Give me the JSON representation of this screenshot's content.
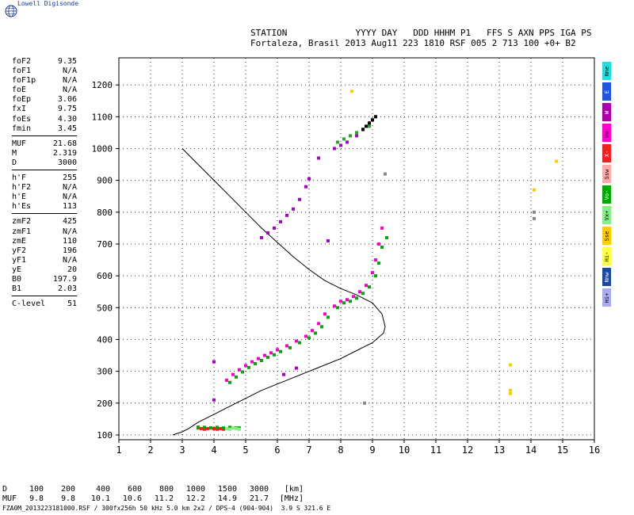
{
  "brand": "Lowell Digisonde",
  "header": {
    "line1": "STATION             YYYY DAY   DDD HHHM P1   FFS S AXN PPS IGA PS",
    "line2": "Fortaleza, Brasil 2013 Aug11 223 1810 RSF 005 2 713 100 +0+ B2"
  },
  "params": [
    {
      "name": "foF2",
      "value": "9.35"
    },
    {
      "name": "foF1",
      "value": "N/A"
    },
    {
      "name": "foF1p",
      "value": "N/A"
    },
    {
      "name": "foE",
      "value": "N/A"
    },
    {
      "name": "foEp",
      "value": "3.06"
    },
    {
      "name": "fxI",
      "value": "9.75"
    },
    {
      "name": "foEs",
      "value": "4.30"
    },
    {
      "name": "fmin",
      "value": "3.45"
    },
    {
      "sep": true
    },
    {
      "name": "MUF",
      "value": "21.68"
    },
    {
      "name": "M",
      "value": "2.319"
    },
    {
      "name": "D",
      "value": "3000"
    },
    {
      "sep": true
    },
    {
      "name": "h'F",
      "value": "255"
    },
    {
      "name": "h'F2",
      "value": "N/A"
    },
    {
      "name": "h'E",
      "value": "N/A"
    },
    {
      "name": "h'Es",
      "value": "113"
    },
    {
      "sep": true
    },
    {
      "name": "zmF2",
      "value": "425"
    },
    {
      "name": "zmF1",
      "value": "N/A"
    },
    {
      "name": "zmE",
      "value": "110"
    },
    {
      "name": "yF2",
      "value": "196"
    },
    {
      "name": "yF1",
      "value": "N/A"
    },
    {
      "name": "yE",
      "value": "20"
    },
    {
      "name": "B0",
      "value": "197.9"
    },
    {
      "name": "B1",
      "value": "2.03"
    },
    {
      "sep": true
    },
    {
      "name": "C-level",
      "value": "51"
    }
  ],
  "legend": [
    {
      "label": "Nne",
      "color": "#22dddd"
    },
    {
      "label": "E",
      "color": "#2255dd"
    },
    {
      "label": "W",
      "color": "#aa00aa"
    },
    {
      "label": "Vo-",
      "color": "#ff00cc"
    },
    {
      "label": "X-",
      "color": "#ee2222"
    },
    {
      "label": "Ssw",
      "color": "#ffaaaa"
    },
    {
      "label": "Vo-",
      "color": "#00aa00"
    },
    {
      "label": "Vx+",
      "color": "#88ee88"
    },
    {
      "label": "Sse",
      "color": "#ffcc00"
    },
    {
      "label": "Hi-",
      "color": "#ffff44"
    },
    {
      "label": "Nnw",
      "color": "#1a4aa0"
    },
    {
      "label": "Hi+",
      "color": "#aaaaee"
    }
  ],
  "freq_table": {
    "rows": [
      [
        "D",
        "100",
        "200",
        "400",
        "600",
        "800",
        "1000",
        "1500",
        "3000",
        "[km]"
      ],
      [
        "MUF",
        "9.8",
        "9.8",
        "10.1",
        "10.6",
        "11.2",
        "12.2",
        "14.9",
        "21.7",
        "[MHz]"
      ]
    ]
  },
  "footer": "FZA0M_2013223181000.RSF / 300fx256h 50 kHz 5.0 km 2x2 / DPS-4 (904-904)  3.9 S 321.6 E",
  "chart_data": {
    "type": "scatter",
    "xlim": [
      1,
      16
    ],
    "ylim": [
      85,
      1285
    ],
    "xticks": [
      1,
      2,
      3,
      4,
      5,
      6,
      7,
      8,
      9,
      10,
      11,
      12,
      13,
      14,
      15,
      16
    ],
    "yticks": [
      100,
      200,
      300,
      400,
      500,
      600,
      700,
      800,
      900,
      1000,
      1100,
      1200
    ],
    "grid": "dotted",
    "profile": {
      "color": "#000000",
      "x": [
        3.0,
        3.5,
        4.0,
        4.5,
        5.0,
        5.5,
        6.0,
        6.5,
        7.0,
        7.5,
        8.0,
        8.5,
        9.0,
        9.3,
        9.4,
        9.35,
        9.0,
        8.5,
        8.0,
        7.5,
        7.0,
        6.5,
        6.0,
        5.5,
        5.0,
        4.5,
        4.0,
        3.5,
        3.2,
        3.0,
        2.7
      ],
      "y": [
        1000,
        950,
        900,
        850,
        800,
        750,
        705,
        660,
        620,
        585,
        560,
        540,
        515,
        480,
        440,
        420,
        390,
        365,
        340,
        320,
        300,
        280,
        260,
        240,
        215,
        190,
        165,
        140,
        120,
        110,
        100
      ]
    },
    "series": [
      {
        "color": "#ff00cc",
        "x": [
          4.4,
          4.6,
          4.8,
          5.0,
          5.2,
          5.4,
          5.6,
          5.8,
          6.0,
          6.3,
          6.6,
          6.9,
          7.1,
          7.3,
          7.5,
          7.8,
          8.0,
          8.2,
          8.4,
          8.6,
          8.8,
          9.0,
          9.1,
          9.2,
          9.3
        ],
        "y": [
          272,
          290,
          305,
          318,
          330,
          340,
          350,
          358,
          368,
          380,
          395,
          410,
          428,
          450,
          480,
          505,
          520,
          525,
          535,
          550,
          570,
          610,
          650,
          700,
          750
        ]
      },
      {
        "color": "#00aa00",
        "x": [
          4.5,
          4.7,
          4.9,
          5.1,
          5.3,
          5.5,
          5.7,
          5.9,
          6.1,
          6.4,
          6.7,
          7.0,
          7.2,
          7.4,
          7.6,
          7.9,
          8.1,
          8.3,
          8.5,
          8.7,
          8.9,
          9.1,
          9.2,
          9.3,
          9.45
        ],
        "y": [
          265,
          282,
          298,
          312,
          324,
          334,
          344,
          352,
          362,
          374,
          390,
          405,
          420,
          440,
          470,
          500,
          515,
          520,
          530,
          545,
          565,
          600,
          640,
          690,
          720
        ]
      },
      {
        "color": "#aa00cc",
        "x": [
          5.5,
          5.7,
          5.9,
          6.1,
          6.3,
          6.5,
          6.7,
          6.9,
          7.0,
          7.3,
          7.8,
          8.0,
          8.2,
          8.5,
          8.7,
          8.9
        ],
        "y": [
          720,
          735,
          750,
          770,
          790,
          810,
          840,
          880,
          905,
          970,
          1000,
          1010,
          1020,
          1040,
          1060,
          1080
        ]
      },
      {
        "color": "#22aa22",
        "x": [
          7.9,
          8.1,
          8.3,
          8.5,
          8.7,
          8.9
        ],
        "y": [
          1020,
          1030,
          1040,
          1050,
          1060,
          1070
        ]
      },
      {
        "color": "#000000",
        "x": [
          8.7,
          8.8,
          8.9,
          9.0,
          9.1
        ],
        "y": [
          1060,
          1070,
          1080,
          1090,
          1100
        ]
      },
      {
        "color": "#ee2222",
        "x": [
          3.5,
          3.6,
          3.7,
          3.8,
          3.9,
          4.0,
          4.1,
          4.2,
          4.3
        ],
        "y": [
          122,
          120,
          118,
          120,
          122,
          120,
          118,
          120,
          118
        ]
      },
      {
        "color": "#00aa00",
        "x": [
          3.5,
          3.7,
          3.9,
          4.1,
          4.3,
          4.5,
          4.7,
          4.8
        ],
        "y": [
          125,
          124,
          122,
          124,
          122,
          124,
          122,
          122
        ]
      },
      {
        "color": "#88ee88",
        "x": [
          4.4,
          4.5,
          4.6,
          4.7,
          4.8
        ],
        "y": [
          120,
          118,
          122,
          120,
          118
        ]
      },
      {
        "color": "#aa00cc",
        "x": [
          4.0,
          4.0,
          6.6,
          6.2,
          7.6
        ],
        "y": [
          210,
          330,
          310,
          290,
          710
        ]
      },
      {
        "color": "#ffcc00",
        "x": [
          8.35,
          13.35,
          13.35,
          13.35,
          14.1,
          14.8
        ],
        "y": [
          1180,
          320,
          240,
          230,
          870,
          960
        ]
      },
      {
        "color": "#888888",
        "x": [
          9.4,
          14.1,
          14.1,
          8.75
        ],
        "y": [
          920,
          800,
          780,
          200
        ]
      }
    ]
  }
}
